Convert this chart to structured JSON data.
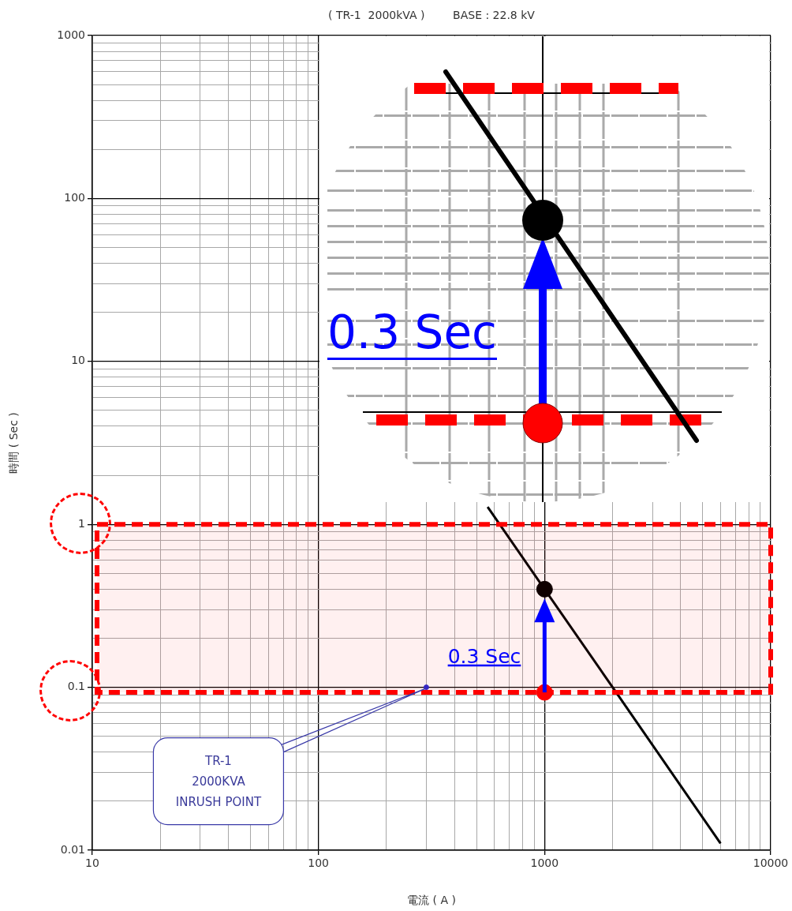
{
  "chart_data": {
    "type": "line",
    "title": "( TR-1  2000kVA )        BASE : 22.8 kV",
    "xlabel": "電流 ( A )",
    "ylabel": "時間 ( Sec )",
    "log": "xy",
    "grid": true,
    "legend": false,
    "xlim": [
      10,
      10000
    ],
    "ylim": [
      0.01,
      1000
    ],
    "xticks": [
      10,
      {
        "value": 20,
        "label": null
      },
      {
        "value": 30,
        "label": null
      },
      {
        "value": 40,
        "label": null
      },
      {
        "value": 50,
        "label": null
      },
      {
        "value": 60,
        "label": null
      },
      {
        "value": 70,
        "label": null
      },
      {
        "value": 80,
        "label": null
      },
      {
        "value": 90,
        "label": null
      },
      100,
      {
        "value": 200,
        "label": null
      },
      {
        "value": 300,
        "label": null
      },
      {
        "value": 400,
        "label": null
      },
      {
        "value": 500,
        "label": null
      },
      {
        "value": 600,
        "label": null
      },
      {
        "value": 700,
        "label": null
      },
      {
        "value": 800,
        "label": null
      },
      {
        "value": 900,
        "label": null
      },
      1000,
      {
        "value": 2000,
        "label": null
      },
      {
        "value": 3000,
        "label": null
      },
      {
        "value": 4000,
        "label": null
      },
      {
        "value": 5000,
        "label": null
      },
      {
        "value": 6000,
        "label": null
      },
      {
        "value": 7000,
        "label": null
      },
      {
        "value": 8000,
        "label": null
      },
      {
        "value": 9000,
        "label": null
      },
      10000
    ],
    "yticks": [
      0.01,
      {
        "value": 0.02,
        "label": null
      },
      {
        "value": 0.03,
        "label": null
      },
      {
        "value": 0.04,
        "label": null
      },
      {
        "value": 0.05,
        "label": null
      },
      {
        "value": 0.06,
        "label": null
      },
      {
        "value": 0.07,
        "label": null
      },
      {
        "value": 0.08,
        "label": null
      },
      {
        "value": 0.09,
        "label": null
      },
      0.1,
      {
        "value": 0.2,
        "label": null
      },
      {
        "value": 0.3,
        "label": null
      },
      {
        "value": 0.4,
        "label": null
      },
      {
        "value": 0.5,
        "label": null
      },
      {
        "value": 0.6,
        "label": null
      },
      {
        "value": 0.7,
        "label": null
      },
      {
        "value": 0.8,
        "label": null
      },
      {
        "value": 0.9,
        "label": null
      },
      1,
      {
        "value": 2,
        "label": null
      },
      {
        "value": 3,
        "label": null
      },
      {
        "value": 4,
        "label": null
      },
      {
        "value": 5,
        "label": null
      },
      {
        "value": 6,
        "label": null
      },
      {
        "value": 7,
        "label": null
      },
      {
        "value": 8,
        "label": null
      },
      {
        "value": 9,
        "label": null
      },
      10,
      {
        "value": 20,
        "label": null
      },
      {
        "value": 30,
        "label": null
      },
      {
        "value": 40,
        "label": null
      },
      {
        "value": 50,
        "label": null
      },
      {
        "value": 60,
        "label": null
      },
      {
        "value": 70,
        "label": null
      },
      {
        "value": 80,
        "label": null
      },
      {
        "value": 90,
        "label": null
      },
      100,
      {
        "value": 200,
        "label": null
      },
      {
        "value": 300,
        "label": null
      },
      {
        "value": 400,
        "label": null
      },
      {
        "value": 500,
        "label": null
      },
      {
        "value": 600,
        "label": null
      },
      {
        "value": 700,
        "label": null
      },
      {
        "value": 800,
        "label": null
      },
      {
        "value": 900,
        "label": null
      },
      1000
    ],
    "series": [
      {
        "type": "line",
        "color": "#000000",
        "marker": "none",
        "line_style": "solid",
        "x": [
          560,
          1000,
          2000,
          6000
        ],
        "values": [
          1.28,
          0.4,
          0.1,
          0.011
        ]
      },
      {
        "type": "scatter",
        "color": "#000000",
        "marker": "circle",
        "x": [
          1000
        ],
        "values": [
          0.4
        ]
      },
      {
        "type": "scatter",
        "color": "#ff0000",
        "marker": "circle",
        "x": [
          1000
        ],
        "values": [
          0.093
        ]
      },
      {
        "type": "scatter",
        "color": "#2a2ad0",
        "marker": "circle",
        "x": [
          300
        ],
        "values": [
          0.1
        ]
      }
    ],
    "bands": [
      {
        "axis": "y",
        "from": 0.093,
        "to": 1,
        "color": "#ff0000"
      }
    ],
    "annotations": [
      "0.3 Sec",
      "TR-1\n2000KVA\nINRUSH POINT",
      "0.3 Sec"
    ]
  }
}
